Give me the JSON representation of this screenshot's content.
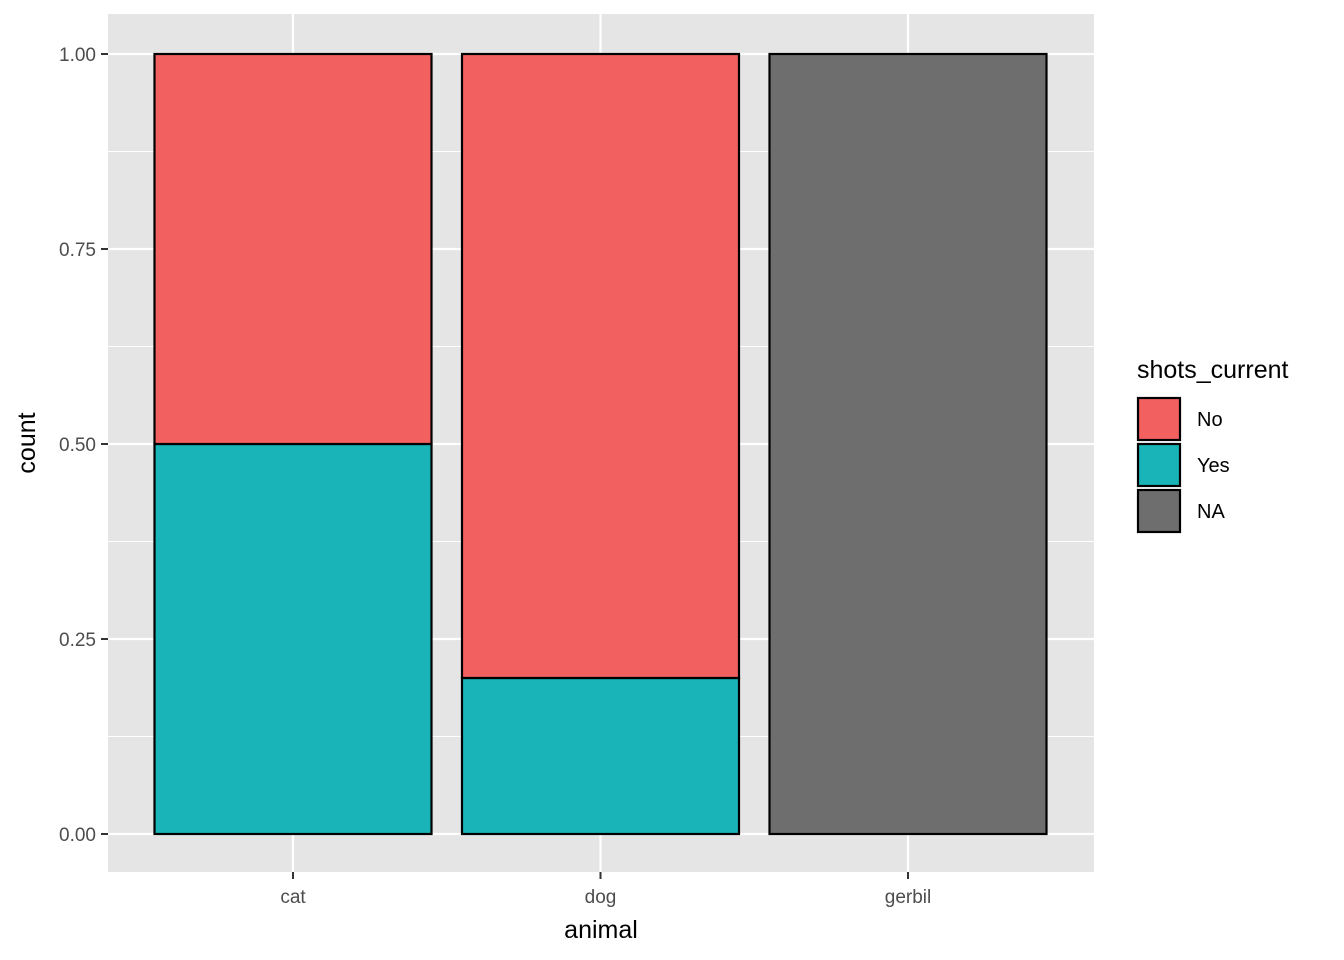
{
  "chart_data": {
    "type": "bar",
    "stacking": "fill",
    "title": "",
    "xlabel": "animal",
    "ylabel": "count",
    "ylim": [
      0,
      1
    ],
    "yticks": [
      0,
      0.25,
      0.5,
      0.75,
      1
    ],
    "ytick_labels": [
      "0.00",
      "0.25",
      "0.50",
      "0.75",
      "1.00"
    ],
    "grid": true,
    "categories": [
      "cat",
      "dog",
      "gerbil"
    ],
    "series": [
      {
        "name": "No",
        "color": "#F36060",
        "values": [
          0.5,
          0.8,
          0
        ]
      },
      {
        "name": "Yes",
        "color": "#19B4B7",
        "values": [
          0.5,
          0.2,
          0
        ]
      },
      {
        "name": "NA",
        "color": "#6E6E6E",
        "values": [
          0,
          0,
          1.0
        ]
      }
    ],
    "stack_order": [
      "Yes",
      "No",
      "NA"
    ],
    "legend": {
      "title": "shots_current",
      "placement": "right",
      "entries": [
        "No",
        "Yes",
        "NA"
      ]
    },
    "colors": {
      "panel_background": "#E5E5E5",
      "grid_line": "#FFFFFF",
      "bar_outline": "#000000"
    }
  }
}
